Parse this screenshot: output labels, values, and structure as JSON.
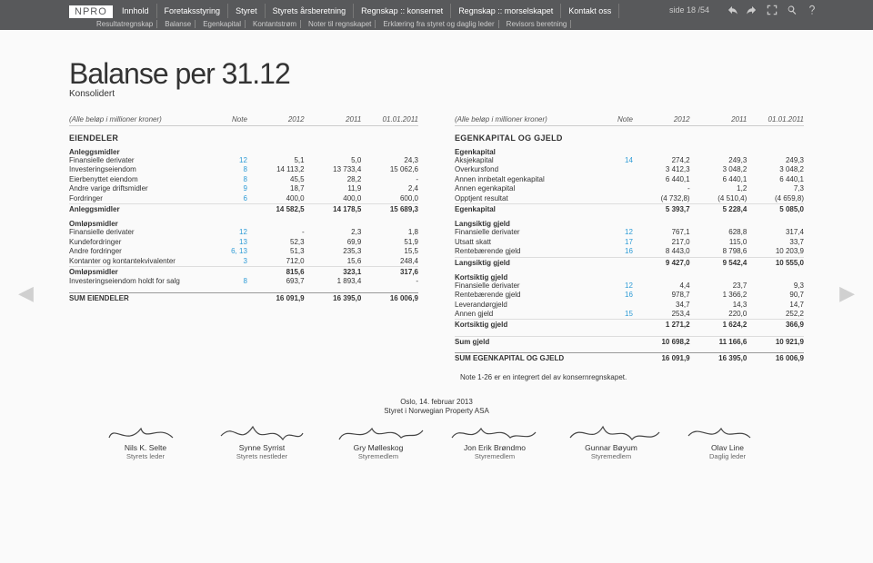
{
  "header": {
    "logo": "NPRO",
    "nav": [
      "Innhold",
      "Foretaksstyring",
      "Styret",
      "Styrets årsberetning",
      "Regnskap :: konsernet",
      "Regnskap :: morselskapet",
      "Kontakt oss"
    ],
    "subnav": [
      "Resultatregnskap",
      "Balanse",
      "Egenkapital",
      "Kontantstrøm",
      "Noter til regnskapet",
      "Erklæring fra styret og daglig leder",
      "Revisors beretning"
    ],
    "page_indicator": "side 18 /54"
  },
  "title": "Balanse per 31.12",
  "subtitle": "Konsolidert",
  "table_header": {
    "unit": "(Alle beløp i millioner kroner)",
    "cols": [
      "Note",
      "2012",
      "2011",
      "01.01.2011"
    ]
  },
  "left": {
    "section": "EIENDELER",
    "groups": [
      {
        "head": "Anleggsmidler",
        "rows": [
          {
            "l": "Finansielle derivater",
            "n": "12",
            "a": "5,1",
            "b": "5,0",
            "c": "24,3"
          },
          {
            "l": "Investeringseiendom",
            "n": "8",
            "a": "14 113,2",
            "b": "13 733,4",
            "c": "15 062,6"
          },
          {
            "l": "Eierbenyttet eiendom",
            "n": "8",
            "a": "45,5",
            "b": "28,2",
            "c": "-"
          },
          {
            "l": "Andre varige driftsmidler",
            "n": "9",
            "a": "18,7",
            "b": "11,9",
            "c": "2,4"
          },
          {
            "l": "Fordringer",
            "n": "6",
            "a": "400,0",
            "b": "400,0",
            "c": "600,0"
          }
        ],
        "sum": {
          "l": "Anleggsmidler",
          "a": "14 582,5",
          "b": "14 178,5",
          "c": "15 689,3"
        }
      },
      {
        "head": "Omløpsmidler",
        "rows": [
          {
            "l": "Finansielle derivater",
            "n": "12",
            "a": "-",
            "b": "2,3",
            "c": "1,8"
          },
          {
            "l": "Kundefordringer",
            "n": "13",
            "a": "52,3",
            "b": "69,9",
            "c": "51,9"
          },
          {
            "l": "Andre fordringer",
            "n": "6, 13",
            "a": "51,3",
            "b": "235,3",
            "c": "15,5"
          },
          {
            "l": "Kontanter og kontantekvivalenter",
            "n": "3",
            "a": "712,0",
            "b": "15,6",
            "c": "248,4"
          }
        ],
        "sum": {
          "l": "Omløpsmidler",
          "a": "815,6",
          "b": "323,1",
          "c": "317,6"
        }
      },
      {
        "rows": [
          {
            "l": "Investeringseiendom holdt for salg",
            "n": "8",
            "a": "693,7",
            "b": "1 893,4",
            "c": "-"
          }
        ]
      }
    ],
    "total": {
      "l": "SUM EIENDELER",
      "a": "16 091,9",
      "b": "16 395,0",
      "c": "16 006,9"
    }
  },
  "right": {
    "section": "EGENKAPITAL OG GJELD",
    "groups": [
      {
        "head": "Egenkapital",
        "rows": [
          {
            "l": "Aksjekapital",
            "n": "14",
            "a": "274,2",
            "b": "249,3",
            "c": "249,3"
          },
          {
            "l": "Overkursfond",
            "n": "",
            "a": "3 412,3",
            "b": "3 048,2",
            "c": "3 048,2"
          },
          {
            "l": "Annen innbetalt egenkapital",
            "n": "",
            "a": "6 440,1",
            "b": "6 440,1",
            "c": "6 440,1"
          },
          {
            "l": "Annen egenkapital",
            "n": "",
            "a": "-",
            "b": "1,2",
            "c": "7,3"
          },
          {
            "l": "Opptjent resultat",
            "n": "",
            "a": "(4 732,8)",
            "b": "(4 510,4)",
            "c": "(4 659,8)"
          }
        ],
        "sum": {
          "l": "Egenkapital",
          "a": "5 393,7",
          "b": "5 228,4",
          "c": "5 085,0"
        }
      },
      {
        "head": "Langsiktig gjeld",
        "rows": [
          {
            "l": "Finansielle derivater",
            "n": "12",
            "a": "767,1",
            "b": "628,8",
            "c": "317,4"
          },
          {
            "l": "Utsatt skatt",
            "n": "17",
            "a": "217,0",
            "b": "115,0",
            "c": "33,7"
          },
          {
            "l": "Rentebærende gjeld",
            "n": "16",
            "a": "8 443,0",
            "b": "8 798,6",
            "c": "10 203,9"
          }
        ],
        "sum": {
          "l": "Langsiktig gjeld",
          "a": "9 427,0",
          "b": "9 542,4",
          "c": "10 555,0"
        }
      },
      {
        "head": "Kortsiktig gjeld",
        "rows": [
          {
            "l": "Finansielle derivater",
            "n": "12",
            "a": "4,4",
            "b": "23,7",
            "c": "9,3"
          },
          {
            "l": "Rentebærende gjeld",
            "n": "16",
            "a": "978,7",
            "b": "1 366,2",
            "c": "90,7"
          },
          {
            "l": "Leverandørgjeld",
            "n": "",
            "a": "34,7",
            "b": "14,3",
            "c": "14,7"
          },
          {
            "l": "Annen gjeld",
            "n": "15",
            "a": "253,4",
            "b": "220,0",
            "c": "252,2"
          }
        ],
        "sum": {
          "l": "Kortsiktig gjeld",
          "a": "1 271,2",
          "b": "1 624,2",
          "c": "366,9"
        }
      }
    ],
    "sum_debt": {
      "l": "Sum gjeld",
      "a": "10 698,2",
      "b": "11 166,6",
      "c": "10 921,9"
    },
    "total": {
      "l": "SUM EGENKAPITAL OG GJELD",
      "a": "16 091,9",
      "b": "16 395,0",
      "c": "16 006,9"
    }
  },
  "footnote": "Note 1-26 er en integrert del av konsernregnskapet.",
  "sig_date_line1": "Oslo, 14. februar 2013",
  "sig_date_line2": "Styret i Norwegian Property ASA",
  "signatures": [
    {
      "name": "Nils K. Selte",
      "role": "Styrets leder"
    },
    {
      "name": "Synne Syrrist",
      "role": "Styrets nestleder"
    },
    {
      "name": "Gry Mølleskog",
      "role": "Styremedlem"
    },
    {
      "name": "Jon Erik Brøndmo",
      "role": "Styremedlem"
    },
    {
      "name": "Gunnar Bøyum",
      "role": "Styremedlem"
    },
    {
      "name": "Olav Line",
      "role": "Daglig leder"
    }
  ]
}
